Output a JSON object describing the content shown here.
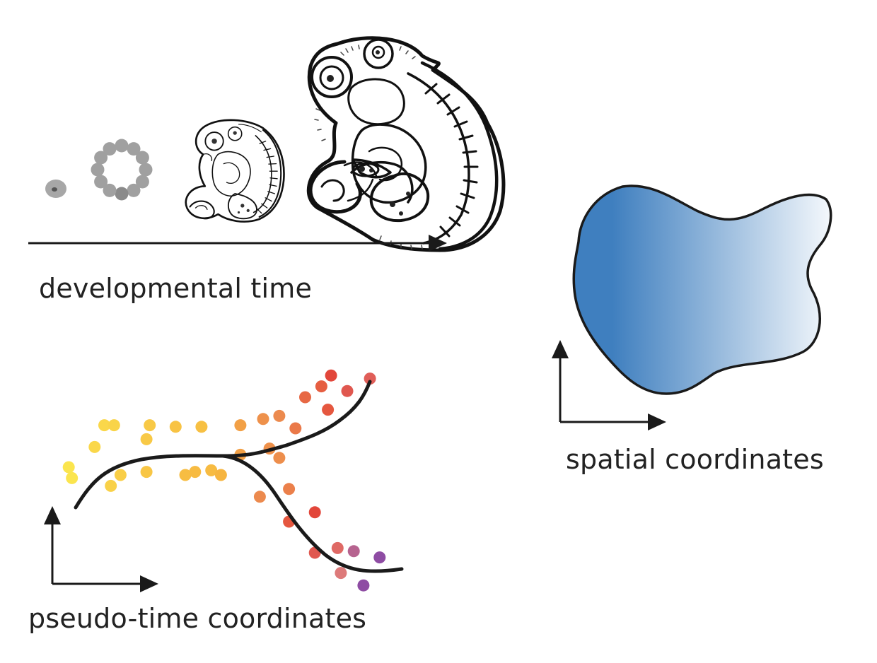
{
  "labels": {
    "developmental_time": "developmental time",
    "spatial_coordinates": "spatial coordinates",
    "pseudo_time_coordinates": "pseudo-time coordinates"
  },
  "stages": [
    "zygote",
    "blastula",
    "early-embryo",
    "late-embryo"
  ],
  "colors": {
    "ink": "#222222",
    "cell_gray": "#a0a0a0",
    "blob_start": "#3f7fbf",
    "blob_end": "#f4f8fc",
    "dot_yellow": "#fbe54e",
    "dot_orange": "#ec8a4e",
    "dot_red": "#e2463a",
    "dot_pink": "#dd7a7a",
    "dot_purple": "#8e4ca3"
  },
  "pseudo_time": {
    "trajectories": [
      "shared-stem",
      "upper-branch",
      "lower-branch"
    ],
    "cells": [
      {
        "t": 0.02,
        "v": 0.45,
        "c": 0.0
      },
      {
        "t": 0.03,
        "v": 0.38,
        "c": 0.0
      },
      {
        "t": 0.1,
        "v": 0.58,
        "c": 0.05
      },
      {
        "t": 0.13,
        "v": 0.72,
        "c": 0.05
      },
      {
        "t": 0.16,
        "v": 0.72,
        "c": 0.06
      },
      {
        "t": 0.15,
        "v": 0.33,
        "c": 0.07
      },
      {
        "t": 0.18,
        "v": 0.4,
        "c": 0.08
      },
      {
        "t": 0.26,
        "v": 0.63,
        "c": 0.1
      },
      {
        "t": 0.27,
        "v": 0.72,
        "c": 0.1
      },
      {
        "t": 0.26,
        "v": 0.42,
        "c": 0.11
      },
      {
        "t": 0.35,
        "v": 0.71,
        "c": 0.12
      },
      {
        "t": 0.43,
        "v": 0.71,
        "c": 0.13
      },
      {
        "t": 0.38,
        "v": 0.4,
        "c": 0.14
      },
      {
        "t": 0.41,
        "v": 0.42,
        "c": 0.15
      },
      {
        "t": 0.46,
        "v": 0.43,
        "c": 0.15
      },
      {
        "t": 0.49,
        "v": 0.4,
        "c": 0.17
      },
      {
        "t": 0.55,
        "v": 0.72,
        "c": 0.3
      },
      {
        "t": 0.55,
        "v": 0.53,
        "c": 0.3
      },
      {
        "t": 0.62,
        "v": 0.76,
        "c": 0.4
      },
      {
        "t": 0.67,
        "v": 0.78,
        "c": 0.45
      },
      {
        "t": 0.64,
        "v": 0.57,
        "c": 0.4
      },
      {
        "t": 0.67,
        "v": 0.51,
        "c": 0.42
      },
      {
        "t": 0.61,
        "v": 0.26,
        "c": 0.45
      },
      {
        "t": 0.72,
        "v": 0.7,
        "c": 0.5
      },
      {
        "t": 0.7,
        "v": 0.31,
        "c": 0.48
      },
      {
        "t": 0.75,
        "v": 0.9,
        "c": 0.55
      },
      {
        "t": 0.8,
        "v": 0.97,
        "c": 0.58
      },
      {
        "t": 0.82,
        "v": 0.82,
        "c": 0.6
      },
      {
        "t": 0.83,
        "v": 1.04,
        "c": 0.65
      },
      {
        "t": 0.88,
        "v": 0.94,
        "c": 0.7
      },
      {
        "t": 0.95,
        "v": 1.02,
        "c": 0.72
      },
      {
        "t": 0.7,
        "v": 0.1,
        "c": 0.6
      },
      {
        "t": 0.78,
        "v": 0.16,
        "c": 0.65
      },
      {
        "t": 0.78,
        "v": -0.1,
        "c": 0.7
      },
      {
        "t": 0.85,
        "v": -0.07,
        "c": 0.75
      },
      {
        "t": 0.86,
        "v": -0.23,
        "c": 0.8
      },
      {
        "t": 0.9,
        "v": -0.09,
        "c": 0.9
      },
      {
        "t": 0.98,
        "v": -0.13,
        "c": 1.0
      },
      {
        "t": 0.93,
        "v": -0.31,
        "c": 1.0
      }
    ]
  }
}
